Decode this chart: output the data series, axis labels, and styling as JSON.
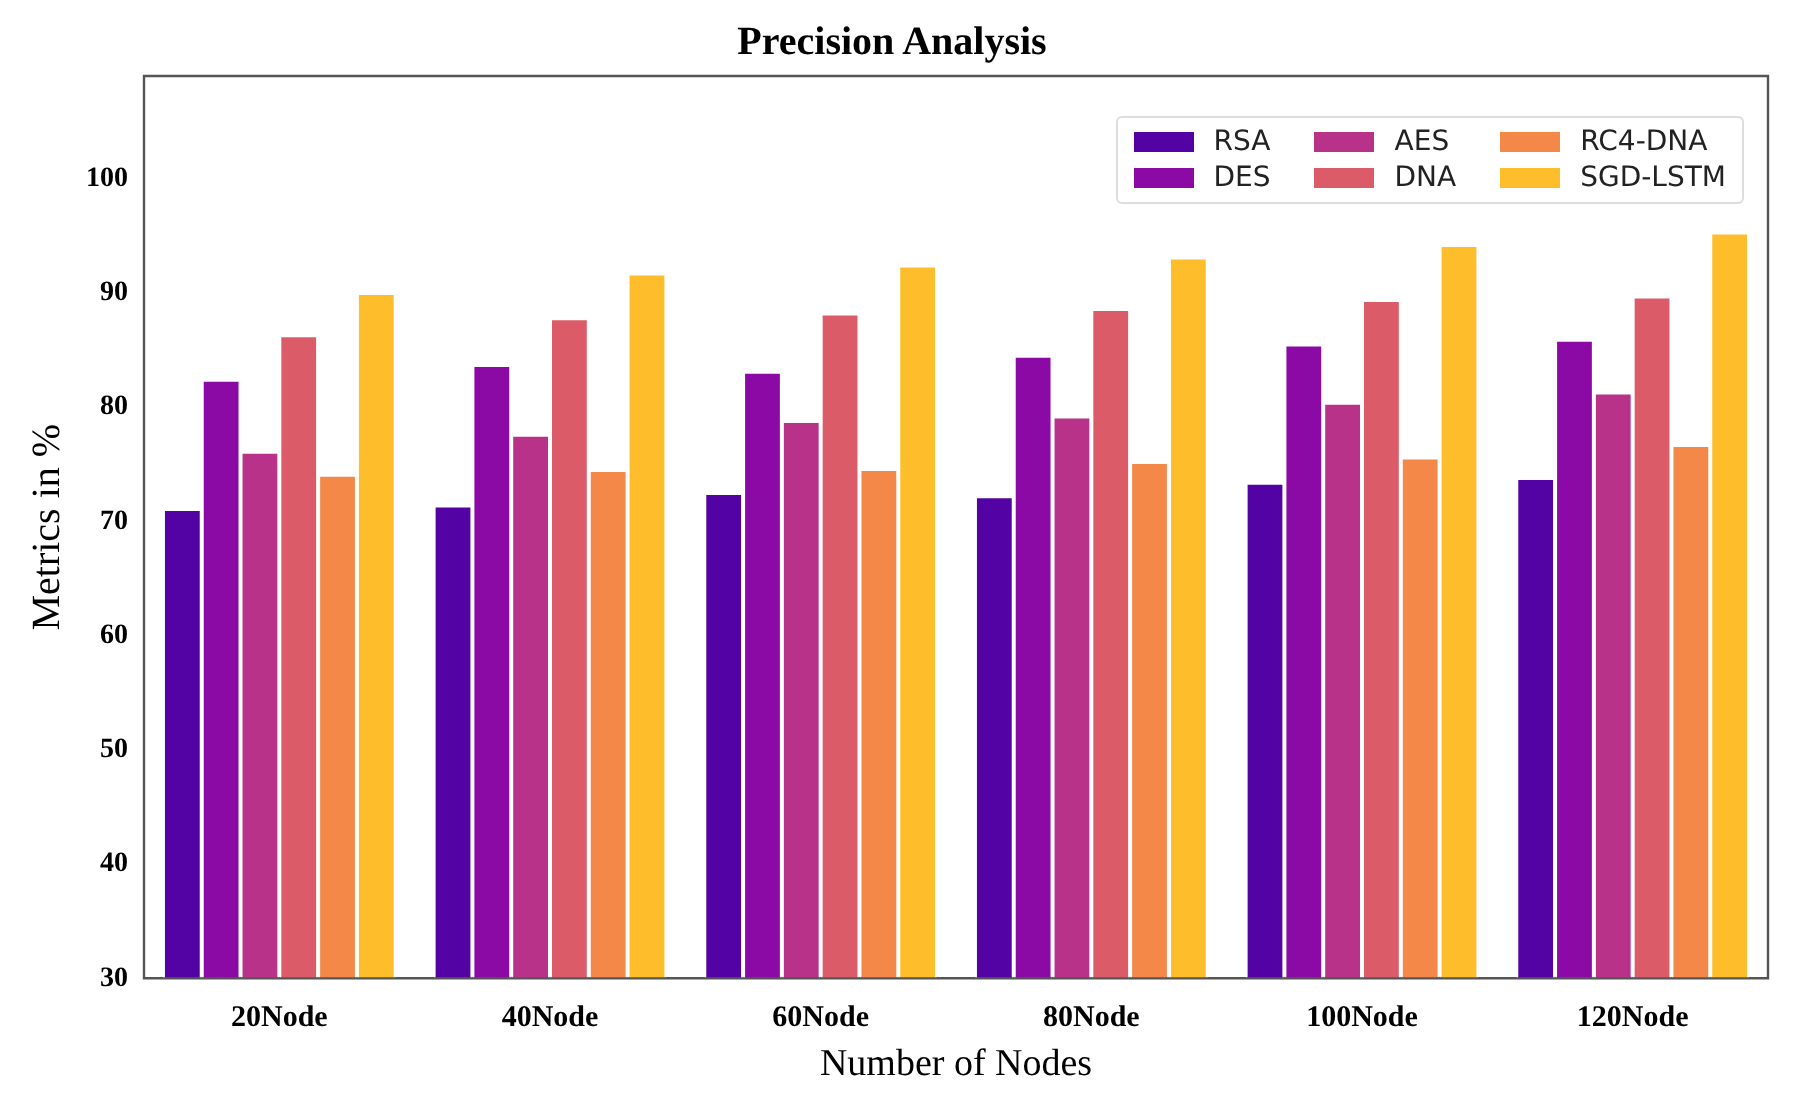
{
  "chart_data": {
    "type": "bar",
    "title": "Precision Analysis",
    "xlabel": "Number of Nodes",
    "ylabel": "Metrics in %",
    "categories": [
      "20Node",
      "40Node",
      "60Node",
      "80Node",
      "100Node",
      "120Node"
    ],
    "ylim": [
      30,
      109
    ],
    "yticks": [
      30,
      40,
      50,
      60,
      70,
      80,
      90,
      100
    ],
    "grid": false,
    "legend": "top right",
    "series": [
      {
        "name": "RSA",
        "color": "#5302a3",
        "values": [
          71.1,
          71.4,
          72.5,
          72.2,
          73.4,
          73.8
        ]
      },
      {
        "name": "DES",
        "color": "#8b0aa5",
        "values": [
          82.4,
          83.7,
          83.1,
          84.5,
          85.5,
          85.9
        ]
      },
      {
        "name": "AES",
        "color": "#b83289",
        "values": [
          76.1,
          77.6,
          78.8,
          79.2,
          80.4,
          81.3
        ]
      },
      {
        "name": "DNA",
        "color": "#db5c68",
        "values": [
          86.3,
          87.8,
          88.2,
          88.6,
          89.4,
          89.7
        ]
      },
      {
        "name": "RC4-DNA",
        "color": "#f48849",
        "values": [
          74.1,
          74.5,
          74.6,
          75.2,
          75.6,
          76.7
        ]
      },
      {
        "name": "SGD-LSTM",
        "color": "#febd2a",
        "values": [
          90.0,
          91.7,
          92.4,
          93.1,
          94.2,
          95.3
        ]
      }
    ]
  }
}
